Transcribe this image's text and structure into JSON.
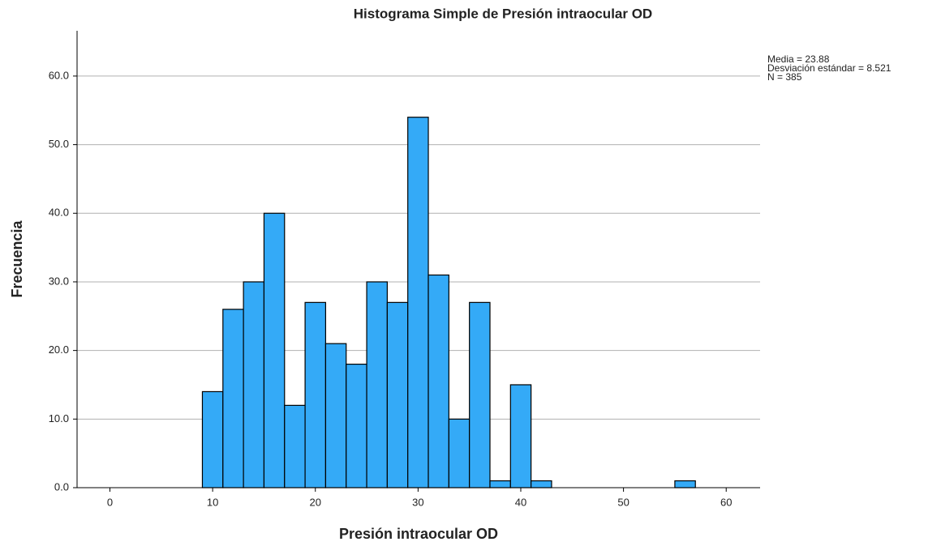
{
  "chart_data": {
    "type": "histogram",
    "title": "Histograma Simple de Presión intraocular OD",
    "x_label": "Presión intraocular OD",
    "y_label": "Frecuencia",
    "stats": [
      "Media = 23.88",
      "Desviación estándar = 8.521",
      "N = 385"
    ],
    "bins": [
      9,
      11,
      13,
      15,
      17,
      19,
      21,
      23,
      25,
      27,
      29,
      31,
      33,
      35,
      37,
      39,
      41,
      43,
      45,
      47,
      49,
      51,
      53,
      55,
      57
    ],
    "values": [
      14,
      26,
      30,
      40,
      12,
      27,
      21,
      18,
      30,
      27,
      54,
      31,
      10,
      27,
      1,
      15,
      1,
      0,
      0,
      0,
      0,
      0,
      0,
      1
    ],
    "color": "#34aaf7",
    "xlim": [
      -3.2,
      63.3
    ],
    "xticks": [
      0,
      10,
      20,
      30,
      40,
      50,
      60
    ],
    "ylim": [
      0,
      66.6
    ],
    "yticks": [
      {
        "value": 0,
        "label": "0.0"
      },
      {
        "value": 10,
        "label": "10.0"
      },
      {
        "value": 20,
        "label": "20.0"
      },
      {
        "value": 30,
        "label": "30.0"
      },
      {
        "value": 40,
        "label": "40.0"
      },
      {
        "value": 50,
        "label": "50.0"
      },
      {
        "value": 60,
        "label": "60.0"
      }
    ],
    "grid": true
  }
}
